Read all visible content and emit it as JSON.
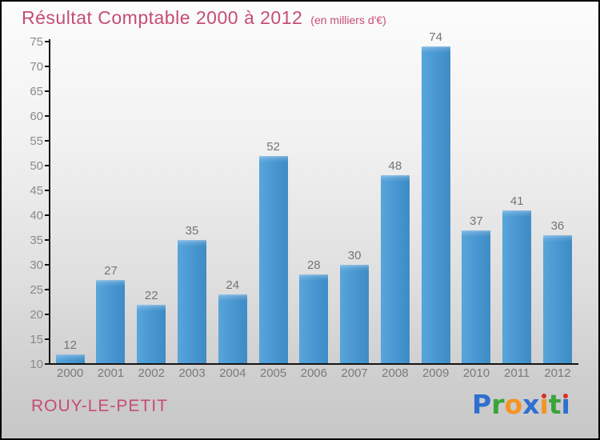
{
  "header": {
    "title": "Résultat Comptable 2000 à 2012",
    "subtitle": "(en milliers d'€)"
  },
  "chart_data": {
    "type": "bar",
    "title": "Résultat Comptable 2000 à 2012",
    "subtitle": "(en milliers d'€)",
    "categories": [
      "2000",
      "2001",
      "2002",
      "2003",
      "2004",
      "2005",
      "2006",
      "2007",
      "2008",
      "2009",
      "2010",
      "2011",
      "2012"
    ],
    "values": [
      12,
      27,
      22,
      35,
      24,
      52,
      28,
      30,
      48,
      74,
      37,
      41,
      36
    ],
    "xlabel": "",
    "ylabel": "",
    "ylim": [
      10,
      75
    ],
    "ytick_step": 5,
    "yticks": [
      10,
      15,
      20,
      25,
      30,
      35,
      40,
      45,
      50,
      55,
      60,
      65,
      70,
      75
    ],
    "grid": false,
    "legend": "none",
    "value_labels": "above-bars",
    "bar_color_left": "#59a5db",
    "bar_color_right": "#3e8cc6"
  },
  "footer": {
    "commune": "ROUY-LE-PETIT",
    "logo_text": "Proxiti",
    "logo_letters": [
      {
        "ch": "P",
        "color": "#2e6fd0"
      },
      {
        "ch": "r",
        "color": "#3aa33a"
      },
      {
        "ch": "o",
        "color": "#f29422"
      },
      {
        "ch": "x",
        "color": "#2e6fd0"
      },
      {
        "ch": "i",
        "color": "#f29422",
        "dot": "#d93025"
      },
      {
        "ch": "t",
        "color": "#3aa33a"
      },
      {
        "ch": "i",
        "color": "#2e6fd0",
        "dot": "#d93025"
      }
    ]
  },
  "colors": {
    "title_pink": "#c64d72",
    "axis_black": "#141414",
    "label_gray": "#757575",
    "tick_gray": "#8a8a8a",
    "background_top": "#fcfcfc",
    "background_bottom": "#c7c7c7"
  }
}
